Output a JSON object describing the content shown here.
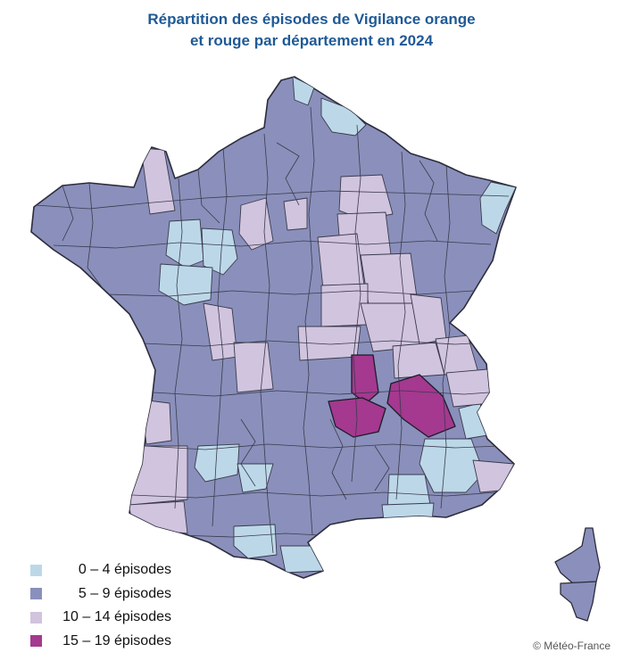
{
  "title": {
    "line1": "Répartition des épisodes de Vigilance orange",
    "line2": "et rouge par département en 2024"
  },
  "legend": [
    {
      "label": "0 – 4 épisodes",
      "color": "#bcd8e8"
    },
    {
      "label": "5 – 9 épisodes",
      "color": "#8a90bb"
    },
    {
      "label": "10 – 14 épisodes",
      "color": "#d1c4de"
    },
    {
      "label": "15 – 19 épisodes",
      "color": "#a4398f"
    }
  ],
  "credit": "© Météo-France"
}
